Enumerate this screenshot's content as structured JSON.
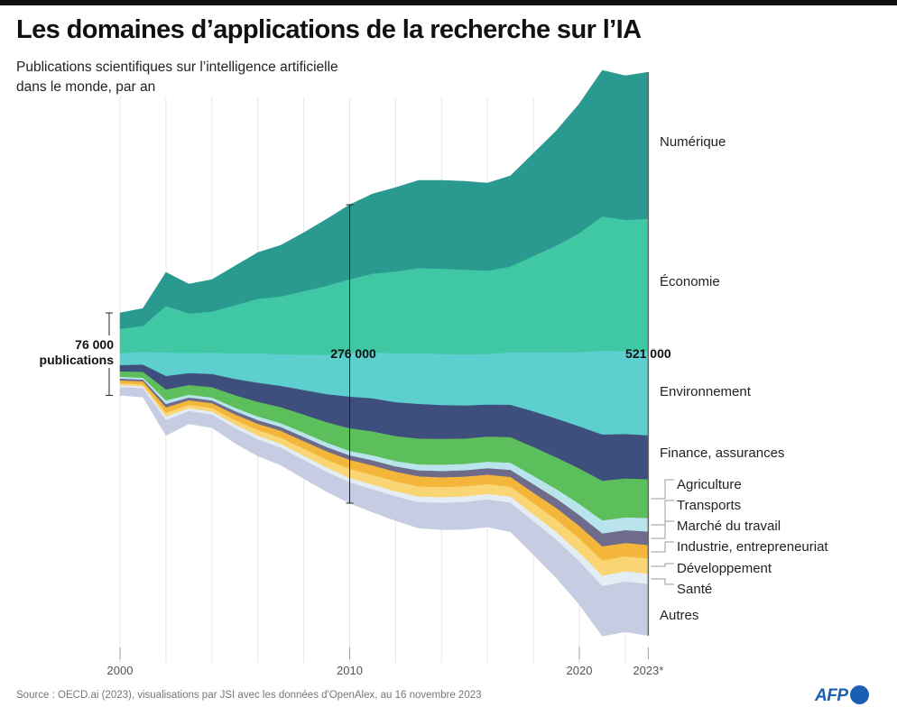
{
  "title": "Les domaines d’applications de la recherche sur l’IA",
  "subtitle_line1": "Publications scientifiques sur l’intelligence artificielle",
  "subtitle_line2": "dans le monde, par an",
  "source": "Source : OECD.ai (2023), visualisations par JSI avec les données d'OpenAlex, au 16 novembre 2023",
  "logo": "AFP",
  "chart_data": {
    "type": "area",
    "variant": "streamgraph",
    "title": "Les domaines d’applications de la recherche sur l’IA",
    "subtitle": "Publications scientifiques sur l’intelligence artificielle dans le monde, par an",
    "x": [
      2000,
      2001,
      2002,
      2003,
      2004,
      2005,
      2006,
      2007,
      2008,
      2009,
      2010,
      2011,
      2012,
      2013,
      2014,
      2015,
      2016,
      2017,
      2018,
      2019,
      2020,
      2021,
      2022,
      2023
    ],
    "x_tick_labels": [
      {
        "year": 2000,
        "label": "2000"
      },
      {
        "year": 2010,
        "label": "2010"
      },
      {
        "year": 2020,
        "label": "2020"
      },
      {
        "year": 2023,
        "label": "2023*"
      }
    ],
    "grid": "vertical every 2 years",
    "annotations": [
      {
        "year": 2000,
        "label_line1": "76 000",
        "label_line2": "publications"
      },
      {
        "year": 2010,
        "label": "276 000"
      },
      {
        "year": 2023,
        "label": "521 000"
      }
    ],
    "legend_placement": "right, inline labels",
    "series": [
      {
        "name": "Numérique",
        "color": "#2a9a91",
        "values": [
          15000,
          16600,
          31400,
          27600,
          30000,
          36700,
          43200,
          47700,
          54500,
          62000,
          69300,
          74100,
          77900,
          81500,
          82000,
          82100,
          81400,
          84200,
          95300,
          106600,
          119900,
          135500,
          133600,
          136000
        ]
      },
      {
        "name": "Économie",
        "color": "#40c7a4",
        "values": [
          22600,
          23900,
          43100,
          36400,
          37900,
          44500,
          50400,
          53400,
          58600,
          63800,
          68400,
          72600,
          75800,
          78600,
          78800,
          78200,
          77000,
          79300,
          89000,
          98700,
          110200,
          124000,
          121300,
          122400
        ]
      },
      {
        "name": "Environnement",
        "color": "#5dcfcf",
        "values": [
          10900,
          11800,
          21600,
          18600,
          19700,
          23500,
          27100,
          29200,
          32700,
          36300,
          40000,
          42600,
          45000,
          46900,
          47200,
          47300,
          46700,
          48400,
          54500,
          61100,
          68500,
          77400,
          76600,
          77600
        ]
      },
      {
        "name": "Finance, assurances",
        "color": "#3f4f7d",
        "values": [
          5900,
          6600,
          12500,
          11100,
          12200,
          15000,
          17700,
          19700,
          22700,
          26000,
          29300,
          30600,
          31400,
          32100,
          31300,
          30600,
          29600,
          29900,
          33000,
          35900,
          38900,
          42900,
          41100,
          40600
        ]
      },
      {
        "name": "Agriculture",
        "color": "#5dbf5b",
        "values": [
          5000,
          5500,
          10200,
          8900,
          9600,
          11600,
          13500,
          14800,
          16800,
          18900,
          21000,
          22100,
          23100,
          23800,
          23900,
          23500,
          23200,
          23700,
          26700,
          29300,
          32900,
          36600,
          36000,
          35900
        ]
      },
      {
        "name": "Transports",
        "color": "#b9e4ec",
        "values": [
          1700,
          1700,
          3200,
          2600,
          2600,
          3100,
          3400,
          3500,
          3900,
          4000,
          4100,
          4700,
          4900,
          5500,
          5800,
          5800,
          6000,
          6600,
          7800,
          8700,
          10200,
          12000,
          11800,
          12500
        ]
      },
      {
        "name": "Marché du travail",
        "color": "#6f6b8b",
        "values": [
          1700,
          1700,
          3200,
          2600,
          2600,
          3100,
          3400,
          3500,
          3900,
          4000,
          4100,
          4700,
          4900,
          5500,
          5800,
          5800,
          6000,
          6600,
          7800,
          8700,
          10200,
          12000,
          11800,
          12500
        ]
      },
      {
        "name": "Industrie, entrepreneuriat",
        "color": "#f3b63b",
        "values": [
          2500,
          2700,
          4800,
          4100,
          4400,
          5200,
          5800,
          6300,
          7000,
          7600,
          8300,
          8800,
          8900,
          9300,
          9000,
          9000,
          8600,
          8900,
          9600,
          10700,
          11600,
          13100,
          12300,
          12500
        ]
      },
      {
        "name": "Développement",
        "color": "#f9d574",
        "values": [
          1700,
          1900,
          3600,
          3100,
          3400,
          4200,
          5100,
          5700,
          6400,
          7300,
          8300,
          8800,
          9200,
          9300,
          9400,
          9300,
          9200,
          9200,
          10400,
          11600,
          13000,
          14100,
          13900,
          14100
        ]
      },
      {
        "name": "Santé",
        "color": "#e4edf4",
        "values": [
          1700,
          1700,
          3200,
          2600,
          2600,
          3100,
          3400,
          3500,
          3900,
          4000,
          4100,
          4400,
          4600,
          5100,
          5200,
          5200,
          5100,
          5600,
          6300,
          7000,
          7900,
          9400,
          9300,
          9400
        ]
      },
      {
        "name": "Autres",
        "color": "#c6cce1",
        "values": [
          7500,
          7900,
          14000,
          11600,
          11900,
          13700,
          15200,
          15800,
          17000,
          18100,
          19000,
          20900,
          22200,
          23800,
          24500,
          25100,
          25100,
          26600,
          30800,
          35100,
          39800,
          46000,
          46300,
          47400
        ]
      }
    ]
  }
}
